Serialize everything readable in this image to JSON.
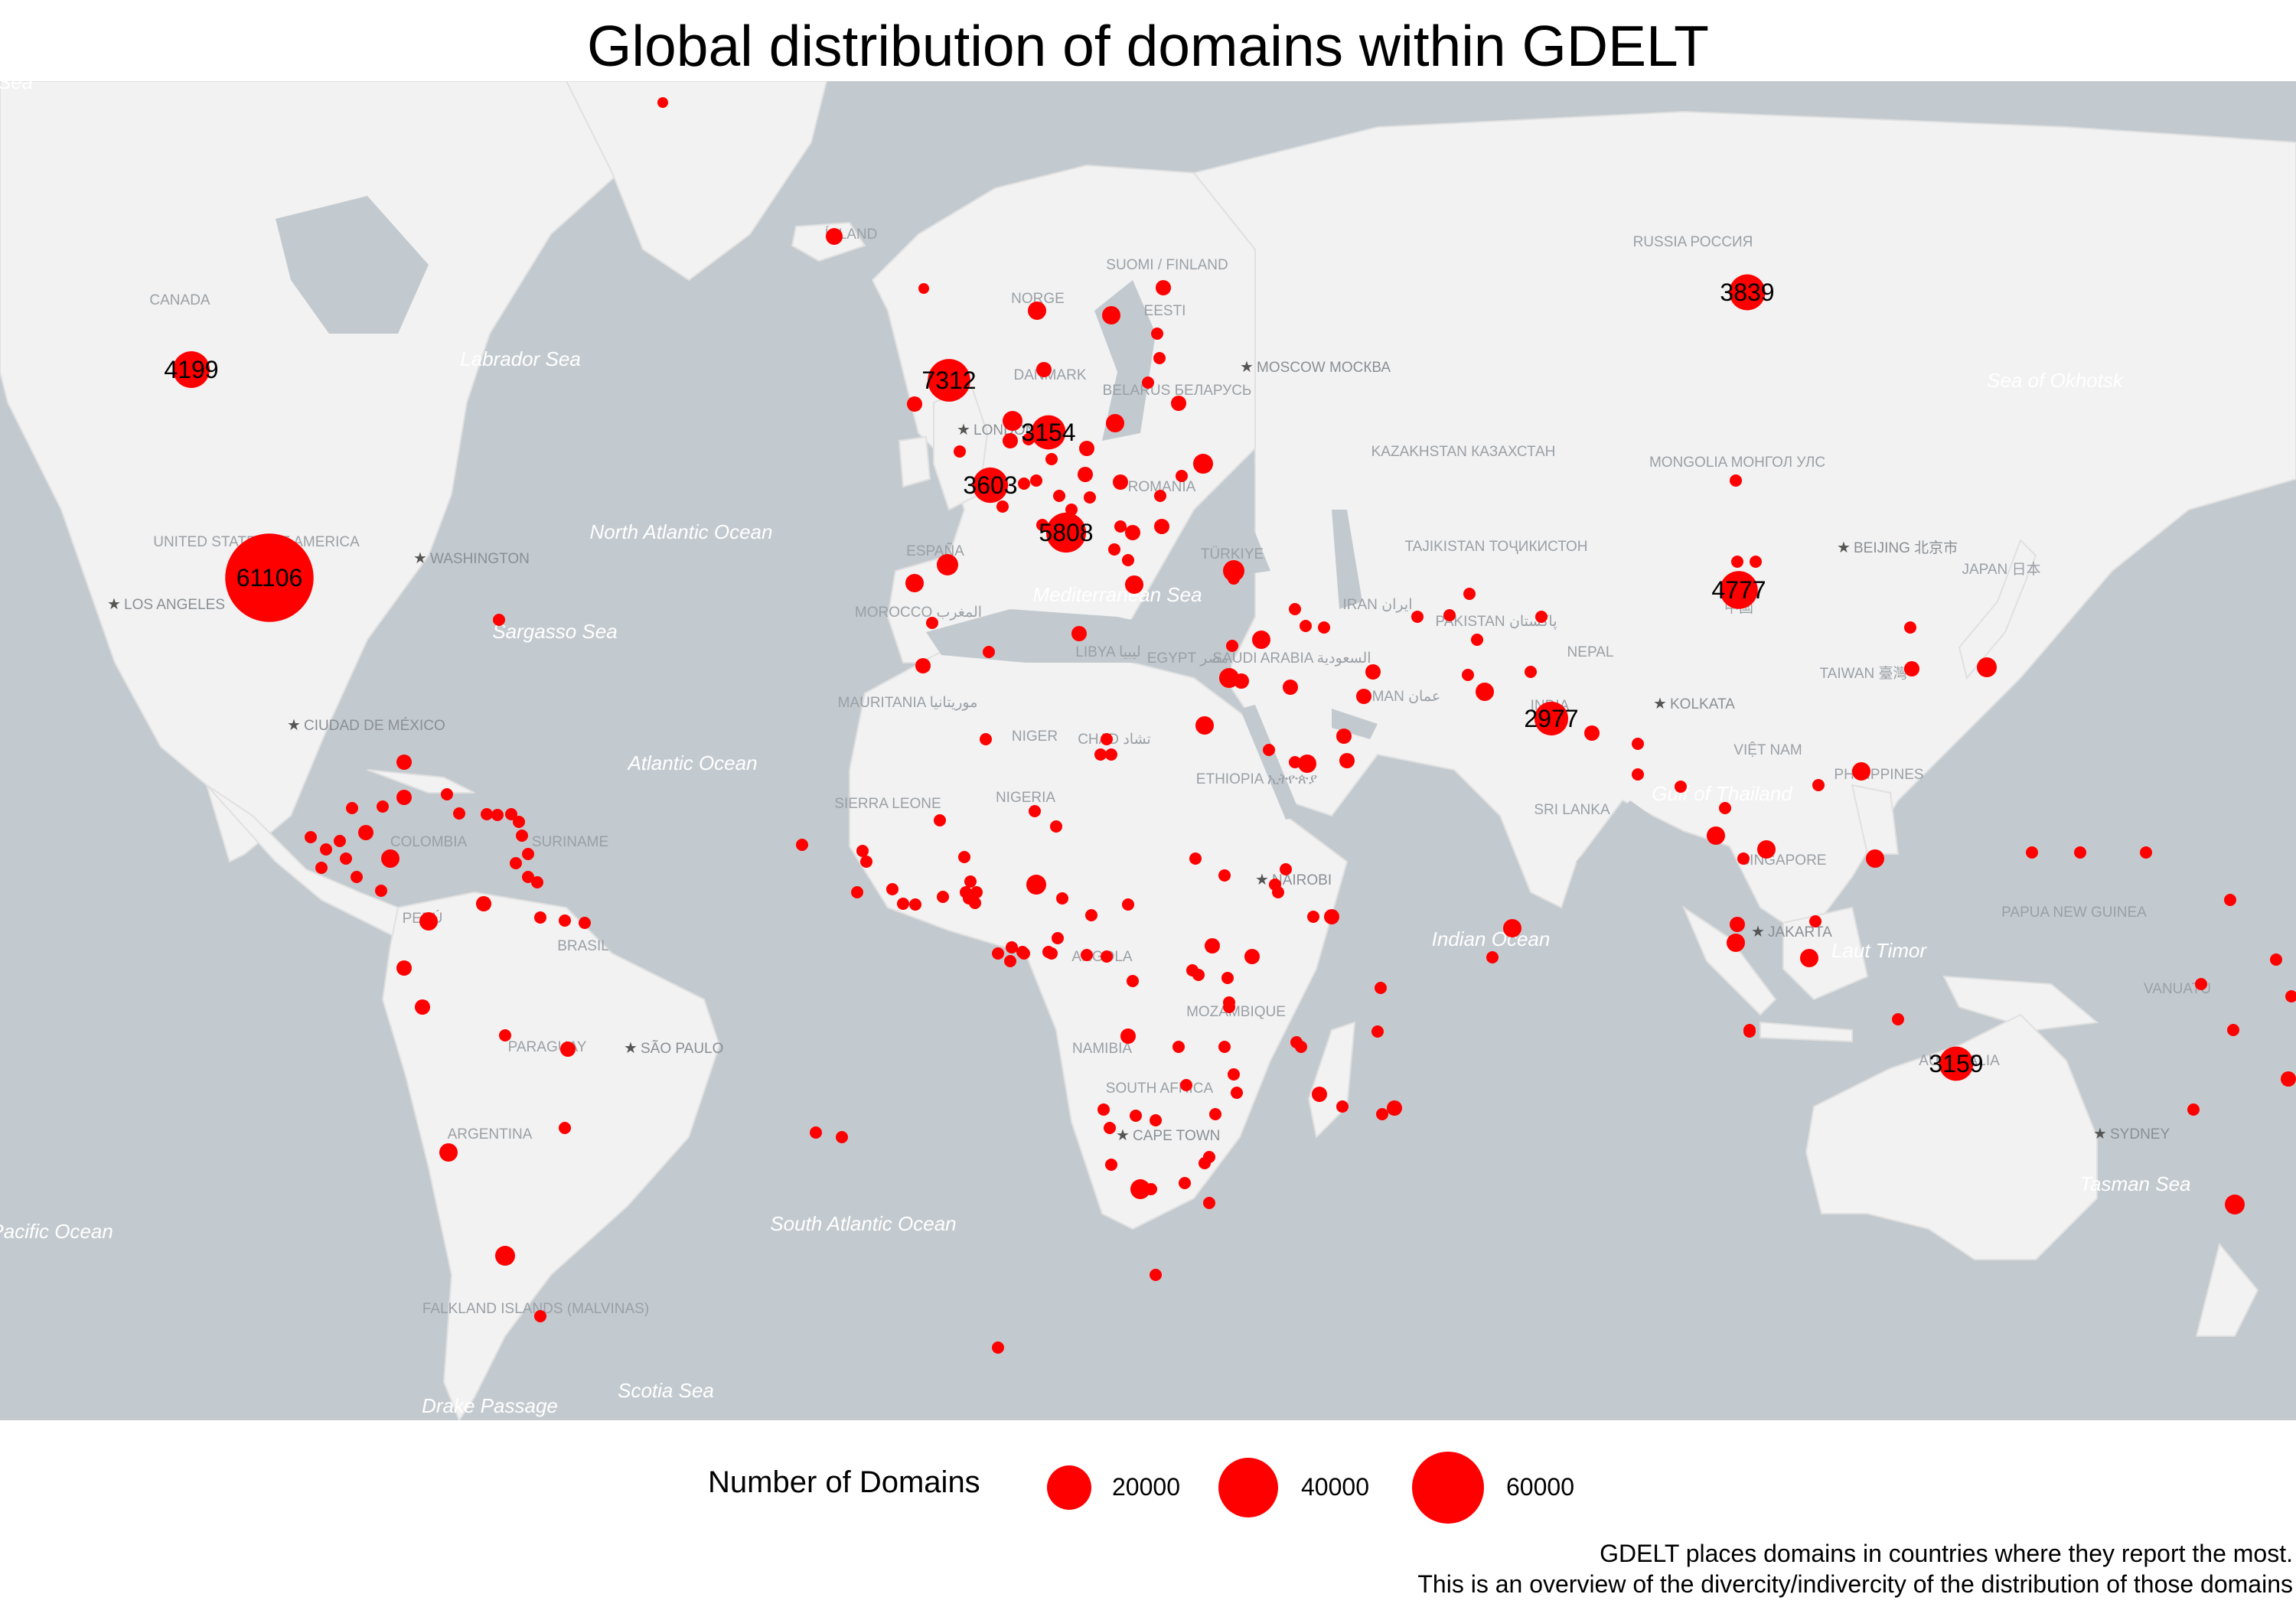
{
  "title": "Global distribution of domains within GDELT",
  "colors": {
    "ocean": "#c3cacf",
    "land": "#f2f2f2",
    "marker": "#ff0000",
    "place_label": "#9aa0a6",
    "water_label": "#ffffff"
  },
  "map": {
    "basemap_labels": {
      "water": [
        "Labrador Sea",
        "North Atlantic Ocean",
        "Sargasso Sea",
        "Atlantic Ocean",
        "South Atlantic Ocean",
        "Mediterranean Sea",
        "Indian Ocean",
        "Gulf of Thailand",
        "Laut Timor",
        "Tasman Sea",
        "Sea of Okhotsk",
        "Scotia Sea",
        "Drake Passage",
        "South Pacific Ocean",
        "Sea"
      ],
      "countries": [
        "CANADA",
        "UNITED STATES OF AMERICA",
        "BRASIL",
        "PERÚ",
        "COLOMBIA",
        "ARGENTINA",
        "PARAGUAY",
        "SURINAME",
        "FALKLAND ISLANDS (MALVINAS)",
        "ÍSLAND",
        "NORGE",
        "SUOMI / FINLAND",
        "EESTI",
        "DANMARK",
        "BELARUS БЕЛАРУСЬ",
        "ROMANIA",
        "ESPAÑA",
        "MOROCCO المغرب",
        "MAURITANIA موريتانيا",
        "NIGER",
        "CHAD تشاد",
        "LIBYA ليبيا",
        "EGYPT مصر",
        "SAUDI ARABIA السعودية",
        "ETHIOPIA ኢትዮጵያ",
        "NIGERIA",
        "SIERRA LEONE",
        "ANGOLA",
        "NAMIBIA",
        "SOUTH AFRICA",
        "MOZAMBIQUE",
        "TÜRKIYE",
        "IRAN ایران",
        "OMAN عمان",
        "PAKISTAN پاکستان",
        "KAZAKHSTAN КАЗАХСТАН",
        "TAJIKISTAN ТОҶИКИСТОН",
        "NEPAL",
        "INDIA",
        "SRI LANKA",
        "RUSSIA РОССИЯ",
        "MONGOLIA МОНГОЛ УЛС",
        "中国",
        "TAIWAN 臺灣",
        "VIỆT NAM",
        "PHILIPPINES",
        "SINGAPORE",
        "JAPAN 日本",
        "AUSTRALIA",
        "PAPUA NEW GUINEA",
        "VANUATU"
      ],
      "cities": [
        "WASHINGTON",
        "LOS ANGELES",
        "CIUDAD DE MÉXICO",
        "SÃO PAULO",
        "LONDON",
        "MOSCOW МОСКВА",
        "NAIROBI",
        "CAPE TOWN",
        "BEIJING 北京市",
        "KOLKATA",
        "JAKARTA",
        "SYDNEY"
      ]
    },
    "labeled_markers": [
      {
        "country": "United States",
        "value": 61106
      },
      {
        "country": "United Kingdom",
        "value": 7312
      },
      {
        "country": "Italy",
        "value": 5808
      },
      {
        "country": "China",
        "value": 4777
      },
      {
        "country": "Canada",
        "value": 4199
      },
      {
        "country": "Russia",
        "value": 3839
      },
      {
        "country": "France",
        "value": 3603
      },
      {
        "country": "Germany",
        "value": 3154
      },
      {
        "country": "Australia",
        "value": 3159
      },
      {
        "country": "India",
        "value": 2977
      }
    ]
  },
  "legend": {
    "title": "Number of Domains",
    "items": [
      {
        "value": 20000,
        "label": "20000"
      },
      {
        "value": 40000,
        "label": "40000"
      },
      {
        "value": 60000,
        "label": "60000"
      }
    ]
  },
  "caption": {
    "line1": "GDELT places domains in countries where they report the most.",
    "line2": "This is an overview of the divercity/indivercity of the distribution of those domains"
  }
}
